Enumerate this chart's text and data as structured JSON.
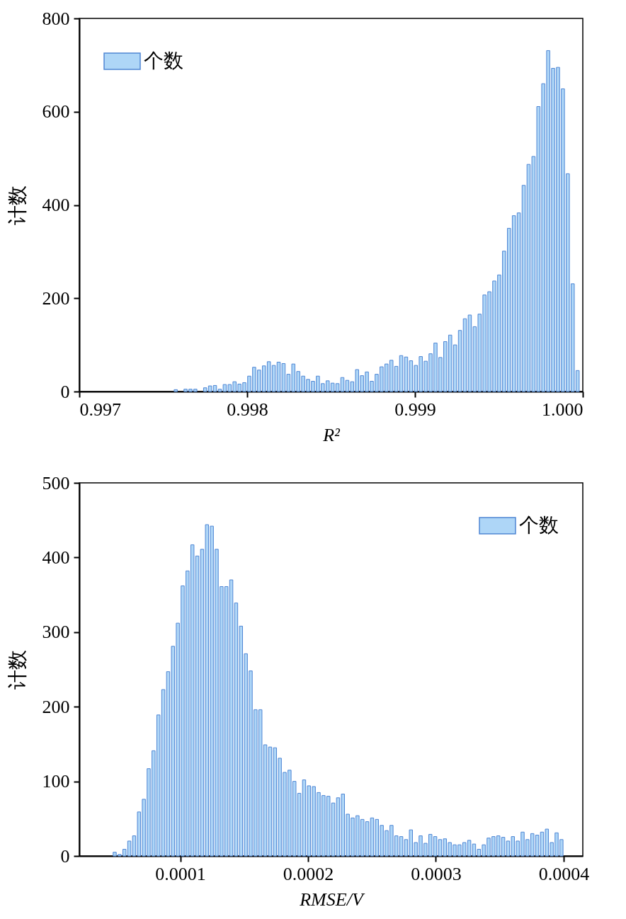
{
  "chart_data": [
    {
      "type": "histogram",
      "xlabel": "R²",
      "ylabel": "计数",
      "legend": "top left",
      "grid": false,
      "xlim": [
        0.997,
        1.0
      ],
      "xticks": [
        0.997,
        0.998,
        0.999,
        {
          "value": 1,
          "label": "1.000"
        }
      ],
      "ylim": [
        0,
        800
      ],
      "yticks": [
        0,
        200,
        400,
        600,
        800
      ],
      "bins": [
        0.99756,
        0.9975892,
        0.9976184,
        0.9976476,
        0.9976768,
        0.997706,
        0.9977352,
        0.9977644,
        0.9977936,
        0.9978228,
        0.997852,
        0.9978812,
        0.9979104,
        0.9979396,
        0.9979688,
        0.997998,
        0.9980272,
        0.9980564,
        0.9980856,
        0.9981148,
        0.998144,
        0.9981732,
        0.9982024,
        0.9982316,
        0.9982608,
        0.99829,
        0.9983192,
        0.9983484,
        0.9983776,
        0.9984068,
        0.998436,
        0.9984652,
        0.9984944,
        0.9985236,
        0.9985528,
        0.998582,
        0.9986112,
        0.9986404,
        0.9986696,
        0.9986988,
        0.998728,
        0.9987572,
        0.9987864,
        0.9988156,
        0.9988448,
        0.998874,
        0.9989032,
        0.9989324,
        0.9989616,
        0.9989908,
        0.99902,
        0.9990492,
        0.9990784,
        0.9991076,
        0.9991368,
        0.999166,
        0.9991952,
        0.9992244,
        0.9992536,
        0.9992828,
        0.999312,
        0.9993412,
        0.9993704,
        0.9993996,
        0.9994288,
        0.999458,
        0.9994872,
        0.9995164,
        0.9995456,
        0.9995748,
        0.999604,
        0.9996332,
        0.9996624,
        0.9996916,
        0.9997208,
        0.99975,
        0.9997792,
        0.9998084,
        0.9998376,
        0.9998668,
        0.999896,
        0.9999252,
        0.9999544,
        0.9999836
      ],
      "series": [
        {
          "name": "个数",
          "color": "#aed6f7",
          "values": [
            4,
            0,
            5,
            5,
            5,
            0,
            8,
            12,
            13,
            5,
            15,
            15,
            21,
            16,
            19,
            33,
            52,
            46,
            55,
            64,
            56,
            63,
            60,
            37,
            59,
            43,
            33,
            26,
            22,
            33,
            17,
            23,
            18,
            17,
            30,
            24,
            21,
            47,
            34,
            42,
            22,
            37,
            53,
            59,
            67,
            54,
            77,
            74,
            66,
            56,
            75,
            65,
            81,
            104,
            73,
            107,
            121,
            100,
            131,
            156,
            164,
            139,
            166,
            207,
            214,
            237,
            250,
            301,
            350,
            377,
            383,
            442,
            487,
            504,
            611,
            660,
            731,
            693,
            695,
            649,
            467,
            231,
            45
          ]
        }
      ]
    },
    {
      "type": "histogram",
      "xlabel": "RMSE/V",
      "ylabel": "计数",
      "legend": "top right",
      "grid": false,
      "xlim": [
        2.1e-05,
        0.000415
      ],
      "xticks": [
        0.0001,
        0.0002,
        0.0003,
        0.0004
      ],
      "ylim": [
        0,
        500
      ],
      "yticks": [
        0,
        100,
        200,
        300,
        400,
        500
      ],
      "bins": [
        4.68e-05,
        5.06e-05,
        5.44e-05,
        5.82e-05,
        6.2e-05,
        6.58e-05,
        6.96e-05,
        7.34e-05,
        7.72e-05,
        8.1e-05,
        8.48e-05,
        8.86e-05,
        9.24e-05,
        9.62e-05,
        0.0001,
        0.0001038,
        0.0001076,
        0.0001114,
        0.0001152,
        0.000119,
        0.0001228,
        0.0001266,
        0.0001304,
        0.0001342,
        0.000138,
        0.0001418,
        0.0001456,
        0.0001494,
        0.0001532,
        0.000157,
        0.0001608,
        0.0001646,
        0.0001684,
        0.0001722,
        0.000176,
        0.0001798,
        0.0001836,
        0.0001874,
        0.0001912,
        0.000195,
        0.0001988,
        0.0002026,
        0.0002064,
        0.0002102,
        0.000214,
        0.0002178,
        0.0002216,
        0.0002254,
        0.0002292,
        0.000233,
        0.0002368,
        0.0002406,
        0.0002444,
        0.0002482,
        0.000252,
        0.0002558,
        0.0002596,
        0.0002634,
        0.0002672,
        0.000271,
        0.0002748,
        0.0002786,
        0.0002824,
        0.0002862,
        0.00029,
        0.0002938,
        0.0002976,
        0.0003014,
        0.0003052,
        0.000309,
        0.0003128,
        0.0003166,
        0.0003204,
        0.0003242,
        0.000328,
        0.0003318,
        0.0003356,
        0.0003394,
        0.0003432,
        0.000347,
        0.0003508,
        0.0003546,
        0.0003584,
        0.0003622,
        0.000366,
        0.0003698,
        0.0003736,
        0.0003774,
        0.0003812,
        0.000385,
        0.0003888,
        0.0003926,
        0.0003964,
        0.0004002
      ],
      "series": [
        {
          "name": "个数",
          "color": "#aed6f7",
          "values": [
            5,
            2,
            9,
            20,
            27,
            59,
            76,
            117,
            141,
            189,
            223,
            247,
            281,
            312,
            362,
            382,
            417,
            402,
            411,
            444,
            442,
            411,
            361,
            361,
            370,
            339,
            308,
            271,
            248,
            196,
            196,
            149,
            146,
            145,
            131,
            112,
            115,
            100,
            84,
            102,
            94,
            93,
            85,
            81,
            80,
            71,
            78,
            83,
            56,
            51,
            54,
            49,
            46,
            51,
            49,
            41,
            34,
            41,
            27,
            26,
            22,
            35,
            18,
            27,
            17,
            29,
            26,
            22,
            23,
            18,
            15,
            15,
            18,
            21,
            16,
            9,
            15,
            24,
            26,
            27,
            25,
            20,
            26,
            20,
            32,
            22,
            30,
            28,
            32,
            36,
            18,
            31,
            22
          ]
        }
      ]
    }
  ]
}
